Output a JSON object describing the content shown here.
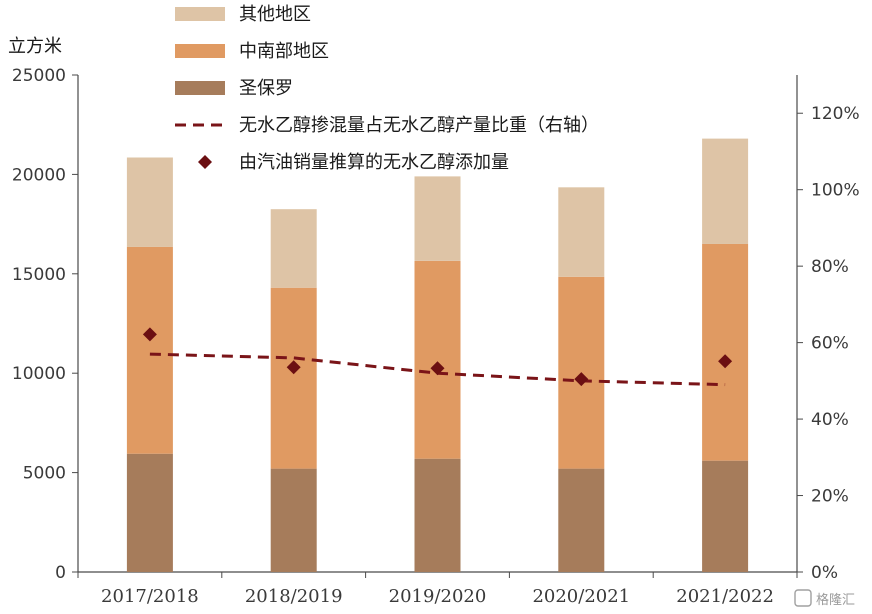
{
  "chart_data": {
    "type": "bar",
    "stacked": true,
    "unit_left": "立方米",
    "categories": [
      "2017/2018",
      "2018/2019",
      "2019/2020",
      "2020/2021",
      "2021/2022"
    ],
    "series": [
      {
        "name": "圣保罗",
        "type": "bar",
        "axis": "left",
        "color": "#a67c5b",
        "values": [
          5950,
          5200,
          5700,
          5200,
          5600
        ]
      },
      {
        "name": "中南部地区",
        "type": "bar",
        "axis": "left",
        "color": "#e09a62",
        "values": [
          10400,
          9100,
          9950,
          9650,
          10900
        ]
      },
      {
        "name": "其他地区",
        "type": "bar",
        "axis": "left",
        "color": "#dec4a6",
        "values": [
          4500,
          3950,
          4250,
          4500,
          5300
        ]
      },
      {
        "name": "无水乙醇掺混量占无水乙醇产量比重（右轴）",
        "type": "line",
        "axis": "right",
        "color": "#7a1418",
        "dash": true,
        "values": [
          0.57,
          0.56,
          0.52,
          0.5,
          0.49
        ]
      },
      {
        "name": "由汽油销量推算的无水乙醇添加量",
        "type": "scatter",
        "axis": "left",
        "color": "#6b0f12",
        "marker": "diamond",
        "values": [
          11950,
          10300,
          10250,
          9700,
          10600
        ]
      }
    ],
    "y_left": {
      "min": 0,
      "max": 25000,
      "ticks": [
        0,
        5000,
        10000,
        15000,
        20000,
        25000
      ]
    },
    "y_right": {
      "min": 0,
      "max": 1.3,
      "ticks": [
        0,
        0.2,
        0.4,
        0.6,
        0.8,
        1.0,
        1.2
      ],
      "tick_labels": [
        "0%",
        "20%",
        "40%",
        "60%",
        "80%",
        "100%",
        "120%"
      ]
    },
    "legend_position": "top-right",
    "grid": false
  },
  "legend": {
    "items": [
      {
        "label": "其他地区",
        "kind": "rect",
        "color": "#dec4a6"
      },
      {
        "label": "中南部地区",
        "kind": "rect",
        "color": "#e09a62"
      },
      {
        "label": "圣保罗",
        "kind": "rect",
        "color": "#a67c5b"
      },
      {
        "label": "无水乙醇掺混量占无水乙醇产量比重（右轴）",
        "kind": "dash",
        "color": "#7a1418"
      },
      {
        "label": "由汽油销量推算的无水乙醇添加量",
        "kind": "diamond",
        "color": "#6b0f12"
      }
    ]
  },
  "watermark": {
    "text": "格隆汇"
  }
}
